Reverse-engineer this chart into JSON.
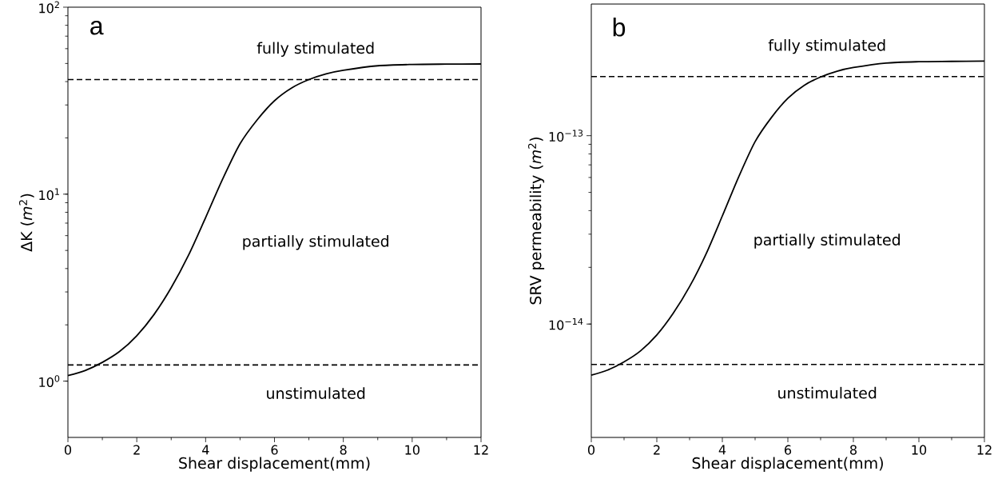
{
  "chart_data": [
    {
      "type": "line",
      "xlabel": "Shear displacement(mm)",
      "ylabel": "ΔK (*m*$^{2}$)",
      "log": "y",
      "xlim": [
        0,
        12
      ],
      "xticks": [
        0,
        2,
        4,
        6,
        8,
        10,
        12
      ],
      "ylim": [
        0.5,
        100
      ],
      "yticks": [
        {
          "value": 1,
          "label": "10$^{0}$"
        },
        {
          "value": 10,
          "label": "10$^{1}$"
        },
        {
          "value": 100,
          "label": "10$^{2}$"
        }
      ],
      "series": [
        {
          "color": "#000000",
          "x": [
            0,
            0.5,
            1,
            1.5,
            2,
            2.5,
            3,
            3.5,
            4,
            4.5,
            5,
            5.5,
            6,
            6.5,
            7,
            7.5,
            8,
            9,
            10,
            11,
            12
          ],
          "values": [
            1.07,
            1.14,
            1.26,
            1.44,
            1.75,
            2.27,
            3.16,
            4.7,
            7.5,
            12.1,
            18.6,
            25,
            31.6,
            37,
            41,
            44,
            46,
            48.6,
            49.4,
            49.6,
            49.7
          ]
        }
      ],
      "ref_lines": [
        {
          "axis": "y",
          "value": 41,
          "color": "#000000",
          "line_style": "dashed"
        },
        {
          "axis": "y",
          "value": 1.22,
          "color": "#000000",
          "line_style": "dashed"
        }
      ],
      "annotations": [
        "a",
        "fully stimulated",
        "partially stimulated",
        "unstimulated"
      ]
    },
    {
      "type": "line",
      "xlabel": "Shear displacement(mm)",
      "ylabel": "SRV permeability (*m*$^{2}$)",
      "log": "y",
      "xlim": [
        0,
        12
      ],
      "xticks": [
        0,
        2,
        4,
        6,
        8,
        10,
        12
      ],
      "ylim": [
        2.5e-15,
        5e-13
      ],
      "yticks": [
        {
          "value": 1e-14,
          "label": "10$^{−14}$"
        },
        {
          "value": 1e-13,
          "label": "10$^{−13}$"
        }
      ],
      "series": [
        {
          "color": "#000000",
          "x": [
            0,
            0.5,
            1,
            1.5,
            2,
            2.5,
            3,
            3.5,
            4,
            4.5,
            5,
            5.5,
            6,
            6.5,
            7,
            7.5,
            8,
            9,
            10,
            11,
            12
          ],
          "values": [
            5.35e-15,
            5.7e-15,
            6.3e-15,
            7.2e-15,
            8.75e-15,
            1.14e-14,
            1.58e-14,
            2.35e-14,
            3.75e-14,
            6.05e-14,
            9.3e-14,
            1.25e-13,
            1.58e-13,
            1.85e-13,
            2.05e-13,
            2.2e-13,
            2.3e-13,
            2.43e-13,
            2.47e-13,
            2.48e-13,
            2.49e-13
          ]
        }
      ],
      "ref_lines": [
        {
          "axis": "y",
          "value": 2.06e-13,
          "color": "#000000",
          "line_style": "dashed"
        },
        {
          "axis": "y",
          "value": 6.1e-15,
          "color": "#000000",
          "line_style": "dashed"
        }
      ],
      "annotations": [
        "b",
        "fully stimulated",
        "partially stimulated",
        "unstimulated"
      ]
    }
  ]
}
